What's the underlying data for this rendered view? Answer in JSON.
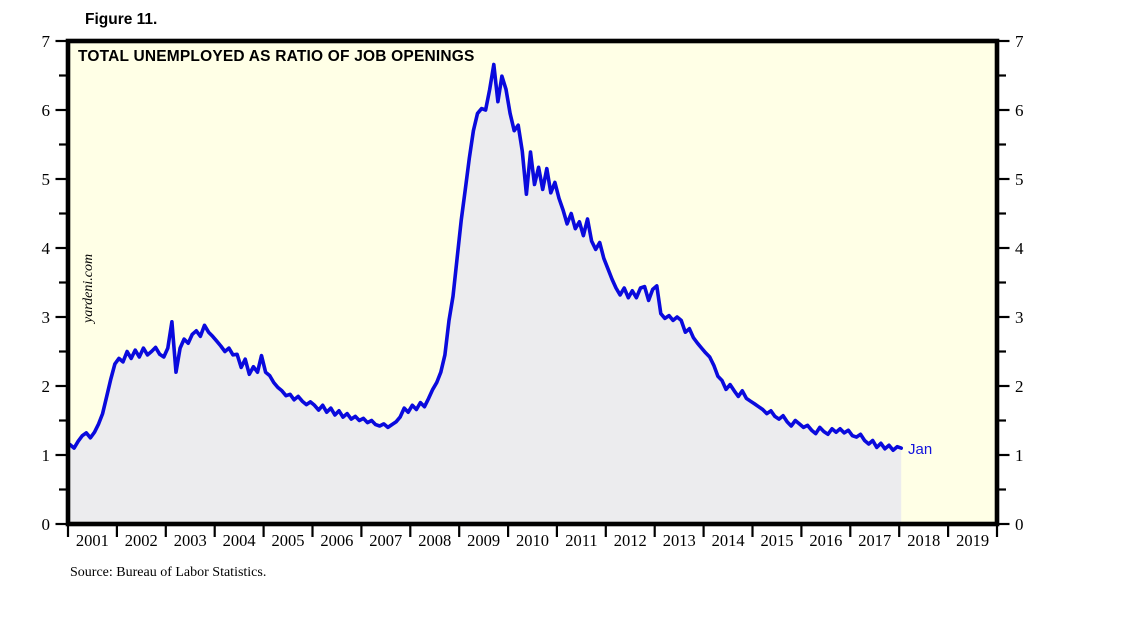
{
  "figure_label": "Figure 11.",
  "chart": {
    "title": "TOTAL UNEMPLOYED AS RATIO OF JOB OPENINGS",
    "watermark": "yardeni.com",
    "end_label": "Jan",
    "source": "Source: Bureau of Labor Statistics."
  },
  "colors": {
    "plot_background": "#FFFFE6",
    "line": "#0A0ADD",
    "area_fill": "#ECECEE",
    "frame": "#000000",
    "end_label": "#1414DD"
  },
  "chart_data": {
    "type": "line",
    "title": "TOTAL UNEMPLOYED AS RATIO OF JOB OPENINGS",
    "frequency": "monthly",
    "start": "2001-01",
    "end": "2018-01",
    "last_point_label": "Jan",
    "x_axis_years": [
      2001,
      2002,
      2003,
      2004,
      2005,
      2006,
      2007,
      2008,
      2009,
      2010,
      2011,
      2012,
      2013,
      2014,
      2015,
      2016,
      2017,
      2018,
      2019
    ],
    "ylim": [
      0,
      7
    ],
    "y_ticks": [
      0,
      1,
      2,
      3,
      4,
      5,
      6,
      7
    ],
    "y_minor_tick_step": 0.5,
    "grid": false,
    "legend": false,
    "area_filled_to_zero": true,
    "values": [
      1.15,
      1.1,
      1.2,
      1.28,
      1.32,
      1.25,
      1.33,
      1.45,
      1.6,
      1.85,
      2.1,
      2.32,
      2.4,
      2.35,
      2.5,
      2.4,
      2.52,
      2.42,
      2.55,
      2.45,
      2.5,
      2.56,
      2.46,
      2.42,
      2.55,
      2.93,
      2.2,
      2.55,
      2.68,
      2.62,
      2.75,
      2.8,
      2.72,
      2.88,
      2.78,
      2.72,
      2.65,
      2.58,
      2.5,
      2.55,
      2.45,
      2.46,
      2.27,
      2.39,
      2.17,
      2.28,
      2.2,
      2.44,
      2.2,
      2.15,
      2.05,
      1.98,
      1.93,
      1.86,
      1.88,
      1.8,
      1.85,
      1.78,
      1.73,
      1.77,
      1.72,
      1.65,
      1.72,
      1.62,
      1.68,
      1.58,
      1.64,
      1.55,
      1.6,
      1.52,
      1.56,
      1.5,
      1.53,
      1.47,
      1.5,
      1.44,
      1.42,
      1.45,
      1.4,
      1.44,
      1.48,
      1.55,
      1.68,
      1.62,
      1.72,
      1.66,
      1.76,
      1.7,
      1.82,
      1.95,
      2.05,
      2.2,
      2.45,
      2.95,
      3.3,
      3.85,
      4.4,
      4.85,
      5.3,
      5.7,
      5.95,
      6.02,
      6.0,
      6.3,
      6.66,
      6.12,
      6.49,
      6.3,
      5.95,
      5.7,
      5.78,
      5.4,
      4.78,
      5.39,
      4.92,
      5.17,
      4.85,
      5.15,
      4.8,
      4.95,
      4.72,
      4.55,
      4.35,
      4.5,
      4.28,
      4.38,
      4.18,
      4.42,
      4.1,
      3.98,
      4.08,
      3.85,
      3.7,
      3.55,
      3.42,
      3.32,
      3.42,
      3.28,
      3.38,
      3.28,
      3.42,
      3.44,
      3.24,
      3.4,
      3.45,
      3.05,
      2.98,
      3.02,
      2.95,
      3.0,
      2.95,
      2.78,
      2.83,
      2.7,
      2.62,
      2.55,
      2.48,
      2.42,
      2.3,
      2.14,
      2.08,
      1.95,
      2.02,
      1.93,
      1.85,
      1.93,
      1.82,
      1.78,
      1.74,
      1.7,
      1.66,
      1.6,
      1.64,
      1.56,
      1.52,
      1.57,
      1.48,
      1.42,
      1.5,
      1.45,
      1.4,
      1.43,
      1.36,
      1.31,
      1.4,
      1.34,
      1.3,
      1.38,
      1.33,
      1.38,
      1.32,
      1.36,
      1.28,
      1.26,
      1.3,
      1.21,
      1.16,
      1.21,
      1.11,
      1.17,
      1.09,
      1.14,
      1.07,
      1.12,
      1.1
    ]
  }
}
